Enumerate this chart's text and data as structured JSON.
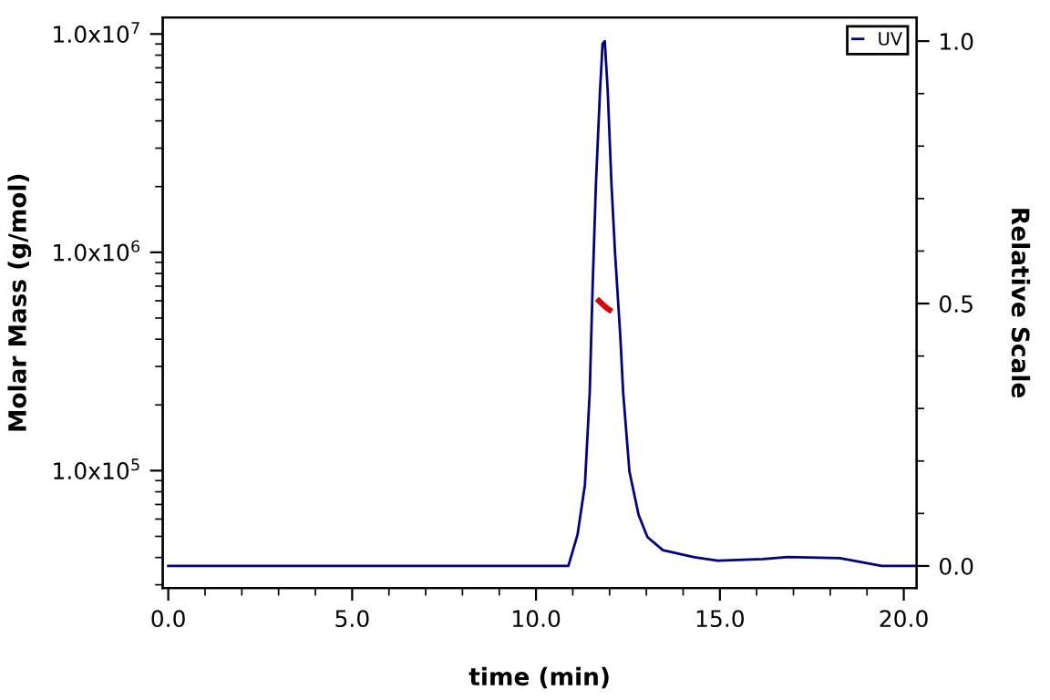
{
  "chart_data": {
    "type": "line",
    "xlabel": "time (min)",
    "ylabel": "Molar Mass (g/mol)",
    "y2label": "Relative Scale",
    "log": "y",
    "legend": "top right",
    "grid": false,
    "xlim": [
      -0.15,
      20.35
    ],
    "ylim": [
      29000,
      11900000
    ],
    "y2lim": [
      -0.042,
      1.045
    ],
    "xticks": [
      {
        "value": 0,
        "label": "0.0"
      },
      {
        "value": 1,
        "label": null
      },
      {
        "value": 2,
        "label": null
      },
      {
        "value": 3,
        "label": null
      },
      {
        "value": 4,
        "label": null
      },
      {
        "value": 5,
        "label": "5.0"
      },
      {
        "value": 6,
        "label": null
      },
      {
        "value": 7,
        "label": null
      },
      {
        "value": 8,
        "label": null
      },
      {
        "value": 9,
        "label": null
      },
      {
        "value": 10,
        "label": "10.0"
      },
      {
        "value": 11,
        "label": null
      },
      {
        "value": 12,
        "label": null
      },
      {
        "value": 13,
        "label": null
      },
      {
        "value": 14,
        "label": null
      },
      {
        "value": 15,
        "label": "15.0"
      },
      {
        "value": 16,
        "label": null
      },
      {
        "value": 17,
        "label": null
      },
      {
        "value": 18,
        "label": null
      },
      {
        "value": 19,
        "label": null
      },
      {
        "value": 20,
        "label": "20.0"
      }
    ],
    "yticks": [
      {
        "value": 30000,
        "label": null
      },
      {
        "value": 40000,
        "label": null
      },
      {
        "value": 50000,
        "label": null
      },
      {
        "value": 60000,
        "label": null
      },
      {
        "value": 70000,
        "label": null
      },
      {
        "value": 80000,
        "label": null
      },
      {
        "value": 90000,
        "label": null
      },
      {
        "value": 100000,
        "label": "1.0x10$^{5}$"
      },
      {
        "value": 200000,
        "label": null
      },
      {
        "value": 300000,
        "label": null
      },
      {
        "value": 400000,
        "label": null
      },
      {
        "value": 500000,
        "label": null
      },
      {
        "value": 600000,
        "label": null
      },
      {
        "value": 700000,
        "label": null
      },
      {
        "value": 800000,
        "label": null
      },
      {
        "value": 900000,
        "label": null
      },
      {
        "value": 1000000,
        "label": "1.0x10$^{6}$"
      },
      {
        "value": 2000000,
        "label": null
      },
      {
        "value": 3000000,
        "label": null
      },
      {
        "value": 4000000,
        "label": null
      },
      {
        "value": 5000000,
        "label": null
      },
      {
        "value": 6000000,
        "label": null
      },
      {
        "value": 7000000,
        "label": null
      },
      {
        "value": 8000000,
        "label": null
      },
      {
        "value": 9000000,
        "label": null
      },
      {
        "value": 10000000,
        "label": "1.0x10$^{7}$"
      }
    ],
    "y2ticks": [
      {
        "value": 0,
        "label": "0.0"
      },
      {
        "value": 0.1,
        "label": null
      },
      {
        "value": 0.2,
        "label": null
      },
      {
        "value": 0.3,
        "label": null
      },
      {
        "value": 0.4,
        "label": null
      },
      {
        "value": 0.5,
        "label": "0.5"
      },
      {
        "value": 0.6,
        "label": null
      },
      {
        "value": 0.7,
        "label": null
      },
      {
        "value": 0.8,
        "label": null
      },
      {
        "value": 0.9,
        "label": null
      },
      {
        "value": 1.0,
        "label": "1.0"
      }
    ],
    "series": [
      {
        "name": "UV",
        "color": "#00008b",
        "axis": "y2",
        "x": [
          0,
          10.88,
          11.13,
          11.33,
          11.46,
          11.54,
          11.63,
          11.74,
          11.81,
          11.87,
          11.95,
          12.05,
          12.15,
          12.29,
          12.37,
          12.54,
          12.79,
          13.03,
          13.45,
          14.28,
          14.94,
          16.17,
          16.85,
          18.26,
          19.4,
          20.35
        ],
        "values": [
          0,
          0,
          0.06,
          0.155,
          0.33,
          0.535,
          0.73,
          0.905,
          0.995,
          1.0,
          0.905,
          0.73,
          0.595,
          0.44,
          0.33,
          0.18,
          0.097,
          0.055,
          0.03,
          0.017,
          0.01,
          0.013,
          0.017,
          0.015,
          0,
          0
        ]
      },
      {
        "color": "#e00000",
        "x": [
          11.71,
          11.8,
          11.9,
          12.0
        ],
        "values": [
          600000,
          580000,
          560000,
          545000
        ]
      }
    ]
  }
}
